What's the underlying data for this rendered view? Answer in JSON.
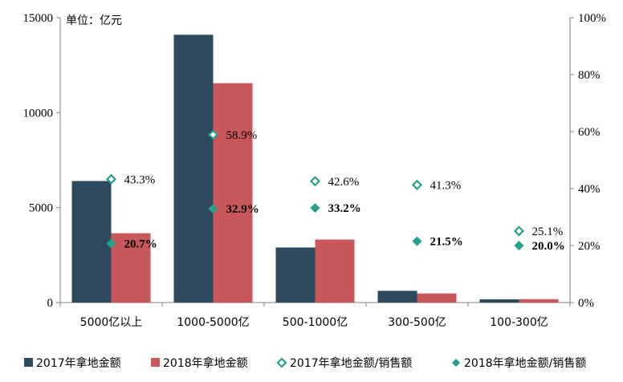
{
  "unit_label": "单位：亿元",
  "colors": {
    "bar_2017": "#2e4a5f",
    "bar_2018": "#c9585c",
    "ratio_marker": "#26a08a",
    "axis": "#7f7f7f"
  },
  "chart_data": {
    "type": "bar",
    "categories": [
      "5000亿以上",
      "1000-5000亿",
      "500-1000亿",
      "300-500亿",
      "100-300亿"
    ],
    "series": [
      {
        "name": "2017年拿地金额",
        "kind": "bar",
        "axis": "left",
        "values": [
          6400,
          14100,
          2900,
          620,
          170
        ]
      },
      {
        "name": "2018年拿地金额",
        "kind": "bar",
        "axis": "left",
        "values": [
          3650,
          11550,
          3320,
          480,
          180
        ]
      },
      {
        "name": "2017年拿地金额/销售额",
        "kind": "marker",
        "marker": "hollow-diamond",
        "axis": "right",
        "values": [
          43.3,
          58.9,
          42.6,
          41.3,
          25.1
        ],
        "labels": [
          "43.3%",
          "58.9%",
          "42.6%",
          "41.3%",
          "25.1%"
        ]
      },
      {
        "name": "2018年拿地金额/销售额",
        "kind": "marker",
        "marker": "filled-diamond",
        "axis": "right",
        "values": [
          20.7,
          32.9,
          33.2,
          21.5,
          20.0
        ],
        "labels": [
          "20.7%",
          "32.9%",
          "33.2%",
          "21.5%",
          "20.0%"
        ]
      }
    ],
    "y_left": {
      "lim": [
        0,
        15000
      ],
      "ticks": [
        "0",
        "5000",
        "10000",
        "15000"
      ]
    },
    "y_right": {
      "lim": [
        0,
        100
      ],
      "ticks": [
        "0%",
        "20%",
        "40%",
        "60%",
        "80%",
        "100%"
      ]
    },
    "grid": false,
    "legend_position": "bottom"
  }
}
